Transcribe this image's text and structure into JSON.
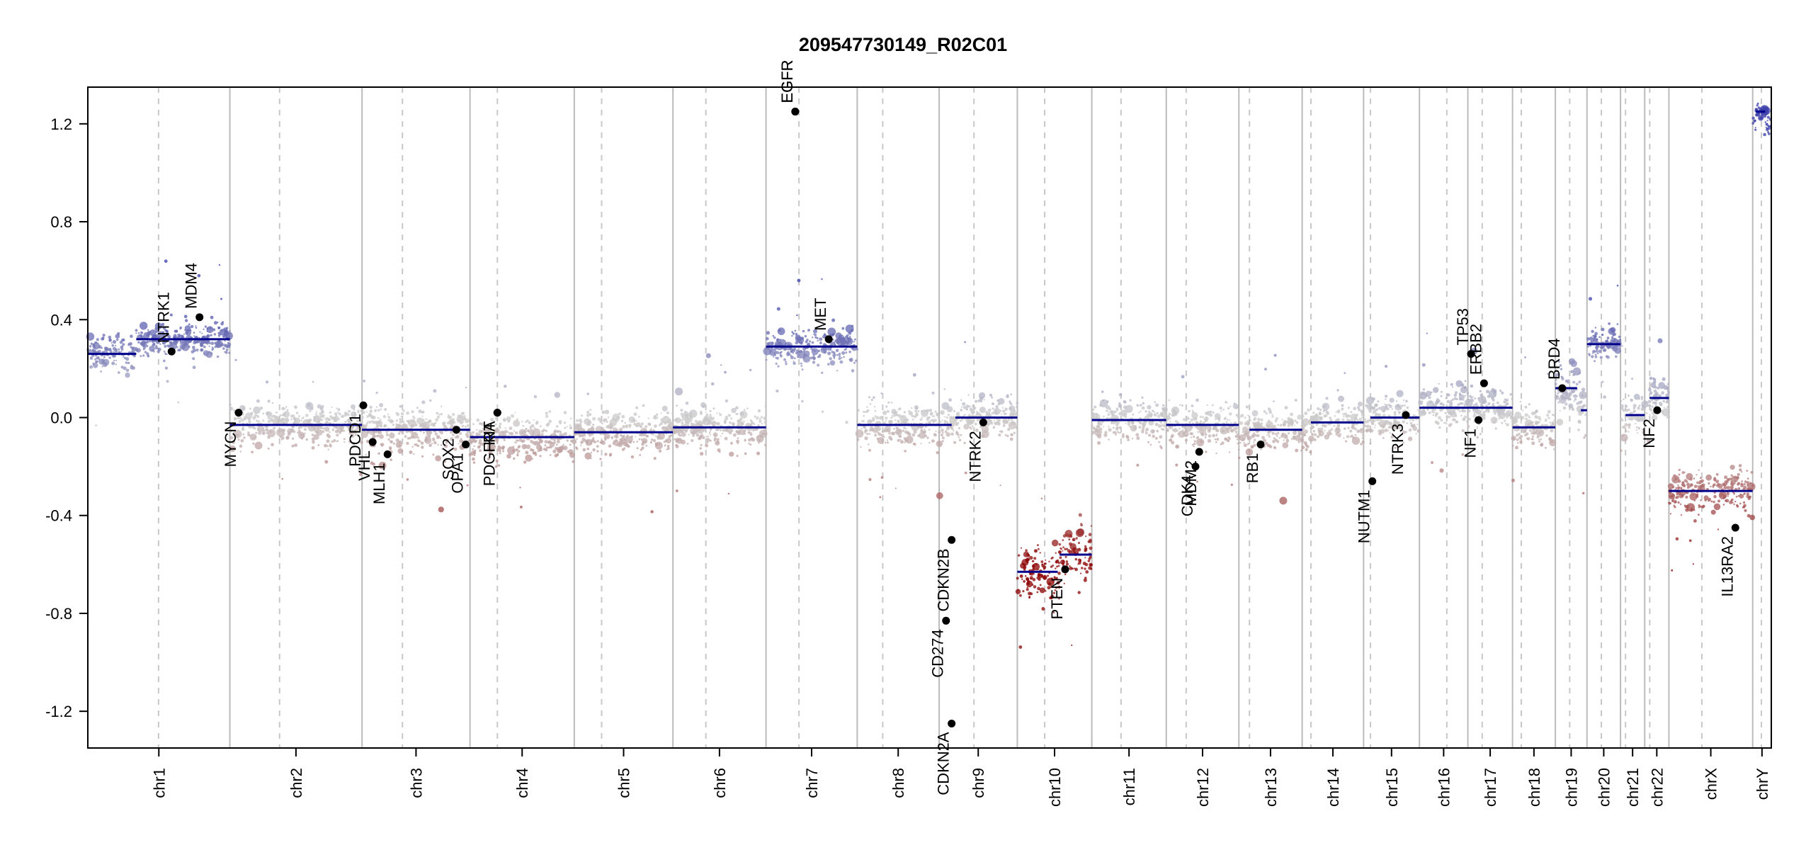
{
  "chart_data": {
    "type": "scatter",
    "title": "209547730149_R02C01",
    "xlabel": "",
    "ylabel": "",
    "ylim": [
      -1.35,
      1.35
    ],
    "y_ticks": [
      {
        "value": 1.2,
        "label": "1.2"
      },
      {
        "value": 0.8,
        "label": "0.8"
      },
      {
        "value": 0.4,
        "label": "0.4"
      },
      {
        "value": 0.0,
        "label": "0.0"
      },
      {
        "value": -0.4,
        "label": "-0.4"
      },
      {
        "value": -0.8,
        "label": "-0.8"
      },
      {
        "value": -1.2,
        "label": "-1.2"
      }
    ],
    "grid": false,
    "colors": {
      "gain": "#3a3ea8",
      "loss": "#8b0000",
      "neutral": "#cccccc",
      "segment": "#00008b",
      "boundary": "#bbbbbb",
      "centromere": "#c8c8c8"
    },
    "chromosomes": [
      {
        "name": "chr1",
        "start": 0.0,
        "end": 7.63,
        "centromere": 3.8,
        "segments": [
          {
            "from": 0.0,
            "to": 2.6,
            "value": 0.26
          },
          {
            "from": 2.6,
            "to": 5.3,
            "value": 0.32
          },
          {
            "from": 5.3,
            "to": 7.63,
            "value": 0.32
          }
        ],
        "level": 0.3,
        "spread": 0.1
      },
      {
        "name": "chr2",
        "start": 7.63,
        "end": 14.73,
        "centromere": 10.3,
        "segments": [
          {
            "from": 7.63,
            "to": 14.73,
            "value": -0.03
          }
        ],
        "level": -0.08,
        "spread": 0.12
      },
      {
        "name": "chr3",
        "start": 14.73,
        "end": 20.53,
        "centromere": 16.9,
        "segments": [
          {
            "from": 14.73,
            "to": 20.53,
            "value": -0.05
          }
        ],
        "level": -0.08,
        "spread": 0.13
      },
      {
        "name": "chr4",
        "start": 20.53,
        "end": 26.13,
        "centromere": 22.0,
        "segments": [
          {
            "from": 20.53,
            "to": 26.13,
            "value": -0.08
          }
        ],
        "level": -0.08,
        "spread": 0.13
      },
      {
        "name": "chr5",
        "start": 26.13,
        "end": 31.43,
        "centromere": 27.6,
        "segments": [
          {
            "from": 26.13,
            "to": 31.43,
            "value": -0.06
          }
        ],
        "level": -0.1,
        "spread": 0.12
      },
      {
        "name": "chr6",
        "start": 31.43,
        "end": 36.43,
        "centromere": 33.2,
        "segments": [
          {
            "from": 31.43,
            "to": 36.43,
            "value": -0.04
          }
        ],
        "level": -0.1,
        "spread": 0.12
      },
      {
        "name": "chr7",
        "start": 36.43,
        "end": 41.33,
        "centromere": 38.2,
        "segments": [
          {
            "from": 36.43,
            "to": 41.33,
            "value": 0.29
          }
        ],
        "level": 0.3,
        "spread": 0.1
      },
      {
        "name": "chr8",
        "start": 41.33,
        "end": 45.73,
        "centromere": 42.7,
        "segments": [
          {
            "from": 41.33,
            "to": 45.73,
            "value": -0.03
          }
        ],
        "level": -0.08,
        "spread": 0.12
      },
      {
        "name": "chr9",
        "start": 45.73,
        "end": 49.93,
        "centromere": 47.6,
        "segments": [
          {
            "from": 45.73,
            "to": 46.4,
            "value": -0.03
          },
          {
            "from": 46.6,
            "to": 49.93,
            "value": 0.0
          }
        ],
        "level": -0.05,
        "spread": 0.12
      },
      {
        "name": "chr10",
        "start": 49.93,
        "end": 53.93,
        "centromere": 51.4,
        "segments": [
          {
            "from": 49.93,
            "to": 52.1,
            "value": -0.63
          },
          {
            "from": 52.2,
            "to": 53.93,
            "value": -0.56
          }
        ],
        "level": -0.65,
        "spread": 0.16
      },
      {
        "name": "chr11",
        "start": 53.93,
        "end": 57.93,
        "centromere": 55.5,
        "segments": [
          {
            "from": 53.93,
            "to": 57.93,
            "value": -0.01
          }
        ],
        "level": -0.05,
        "spread": 0.12
      },
      {
        "name": "chr12",
        "start": 57.93,
        "end": 61.83,
        "centromere": 59.0,
        "segments": [
          {
            "from": 57.93,
            "to": 61.83,
            "value": -0.03
          }
        ],
        "level": -0.06,
        "spread": 0.12
      },
      {
        "name": "chr13",
        "start": 61.83,
        "end": 65.23,
        "centromere": 62.4,
        "segments": [
          {
            "from": 62.4,
            "to": 65.23,
            "value": -0.05
          }
        ],
        "level": -0.06,
        "spread": 0.12
      },
      {
        "name": "chr14",
        "start": 65.23,
        "end": 68.53,
        "centromere": 65.7,
        "segments": [
          {
            "from": 65.7,
            "to": 68.53,
            "value": -0.02
          }
        ],
        "level": -0.06,
        "spread": 0.12
      },
      {
        "name": "chr15",
        "start": 68.53,
        "end": 71.53,
        "centromere": 68.9,
        "segments": [
          {
            "from": 68.9,
            "to": 71.53,
            "value": 0.0
          }
        ],
        "level": -0.03,
        "spread": 0.12
      },
      {
        "name": "chr16",
        "start": 71.53,
        "end": 74.13,
        "centromere": 73.0,
        "segments": [
          {
            "from": 71.53,
            "to": 74.13,
            "value": 0.04
          }
        ],
        "level": 0.02,
        "spread": 0.12
      },
      {
        "name": "chr17",
        "start": 74.13,
        "end": 76.53,
        "centromere": 74.9,
        "segments": [
          {
            "from": 74.13,
            "to": 76.53,
            "value": 0.04
          }
        ],
        "level": 0.02,
        "spread": 0.12
      },
      {
        "name": "chr18",
        "start": 76.53,
        "end": 78.83,
        "centromere": 77.0,
        "segments": [
          {
            "from": 76.53,
            "to": 78.83,
            "value": -0.04
          }
        ],
        "level": -0.06,
        "spread": 0.12
      },
      {
        "name": "chr19",
        "start": 78.83,
        "end": 80.53,
        "centromere": 79.6,
        "segments": [
          {
            "from": 78.83,
            "to": 80.0,
            "value": 0.12
          },
          {
            "from": 80.2,
            "to": 80.53,
            "value": 0.03
          }
        ],
        "level": 0.05,
        "spread": 0.15
      },
      {
        "name": "chr20",
        "start": 80.53,
        "end": 82.33,
        "centromere": 81.3,
        "segments": [
          {
            "from": 80.53,
            "to": 82.33,
            "value": 0.3
          }
        ],
        "level": 0.3,
        "spread": 0.09
      },
      {
        "name": "chr21",
        "start": 82.33,
        "end": 83.63,
        "centromere": 82.6,
        "segments": [
          {
            "from": 82.6,
            "to": 83.63,
            "value": 0.01
          }
        ],
        "level": -0.03,
        "spread": 0.12
      },
      {
        "name": "chr22",
        "start": 83.63,
        "end": 84.93,
        "centromere": 83.9,
        "segments": [
          {
            "from": 83.9,
            "to": 84.93,
            "value": 0.08
          }
        ],
        "level": 0.05,
        "spread": 0.12
      },
      {
        "name": "chrX",
        "start": 84.93,
        "end": 89.43,
        "centromere": 86.7,
        "segments": [
          {
            "from": 84.93,
            "to": 89.43,
            "value": -0.3
          }
        ],
        "level": -0.32,
        "spread": 0.12
      },
      {
        "name": "chrY",
        "start": 89.43,
        "end": 90.43,
        "centromere": 89.9,
        "segments": [
          {
            "from": 89.6,
            "to": 90.1,
            "value": 1.25
          }
        ],
        "level": 1.2,
        "spread": 0.05
      }
    ],
    "genes": [
      {
        "name": "NTRK1",
        "x": 4.5,
        "y": 0.27
      },
      {
        "name": "MDM4",
        "x": 6.0,
        "y": 0.41
      },
      {
        "name": "MYCN",
        "x": 8.1,
        "y": 0.02
      },
      {
        "name": "PDCD1",
        "x": 14.8,
        "y": 0.05
      },
      {
        "name": "VHL",
        "x": 15.3,
        "y": -0.1
      },
      {
        "name": "MLH1",
        "x": 16.1,
        "y": -0.15
      },
      {
        "name": "SOX2",
        "x": 19.8,
        "y": -0.05
      },
      {
        "name": "OPA1",
        "x": 20.3,
        "y": -0.11
      },
      {
        "name": "PDGFRA",
        "x": 22.0,
        "y": 0.02
      },
      {
        "name": "KIT",
        "x": 22.0,
        "y": 0.02
      },
      {
        "name": "EGFR",
        "x": 38.0,
        "y": 1.25
      },
      {
        "name": "EGFR",
        "x": 38.0,
        "y": 1.25
      },
      {
        "name": "MET",
        "x": 39.8,
        "y": 0.32
      },
      {
        "name": "CD274",
        "x": 46.1,
        "y": -0.83
      },
      {
        "name": "CDKN2A",
        "x": 46.4,
        "y": -1.25
      },
      {
        "name": "CDKN2B",
        "x": 46.4,
        "y": -0.5
      },
      {
        "name": "NTRK2",
        "x": 48.1,
        "y": -0.02
      },
      {
        "name": "PTEN",
        "x": 52.5,
        "y": -0.62
      },
      {
        "name": "CDK4",
        "x": 59.5,
        "y": -0.2
      },
      {
        "name": "MDM2",
        "x": 59.7,
        "y": -0.14
      },
      {
        "name": "RB1",
        "x": 63.0,
        "y": -0.11
      },
      {
        "name": "NUTM1",
        "x": 69.0,
        "y": -0.26
      },
      {
        "name": "NTRK3",
        "x": 70.8,
        "y": 0.01
      },
      {
        "name": "TP53",
        "x": 74.3,
        "y": 0.26
      },
      {
        "name": "ERBB2",
        "x": 75.0,
        "y": 0.14
      },
      {
        "name": "NF1",
        "x": 74.7,
        "y": -0.01
      },
      {
        "name": "BRD4",
        "x": 79.2,
        "y": 0.12
      },
      {
        "name": "NF2",
        "x": 84.3,
        "y": 0.03
      },
      {
        "name": "IL13RA2",
        "x": 88.5,
        "y": -0.45
      }
    ]
  }
}
